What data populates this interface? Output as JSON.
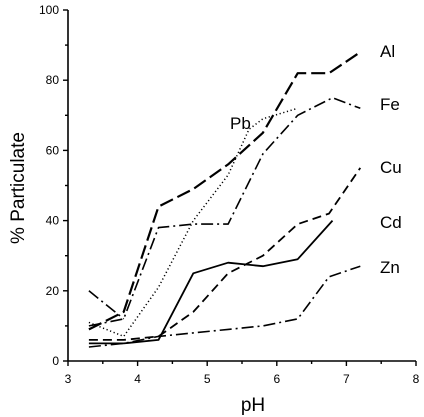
{
  "chart_data": {
    "type": "line",
    "title": "",
    "xlabel": "pH",
    "ylabel": "% Particulate",
    "xlim": [
      3,
      8
    ],
    "ylim": [
      0,
      100
    ],
    "x_ticks": [
      "3",
      "4",
      "5",
      "6",
      "7",
      "8"
    ],
    "y_ticks": [
      "0",
      "20",
      "40",
      "60",
      "80",
      "100"
    ],
    "grid": false,
    "series": [
      {
        "name": "Al",
        "style": "long-dash",
        "x": [
          3.3,
          3.8,
          4.3,
          4.8,
          5.3,
          5.8,
          6.3,
          6.75,
          7.2
        ],
        "y": [
          9,
          14,
          44,
          49,
          56,
          65,
          82,
          82,
          88
        ]
      },
      {
        "name": "Fe",
        "style": "dash-dot",
        "x": [
          3.3,
          3.8,
          4.3,
          4.8,
          5.3,
          5.8,
          6.3,
          6.8,
          7.2
        ],
        "y": [
          10,
          12,
          38,
          39,
          39,
          59,
          70,
          75,
          72
        ]
      },
      {
        "name": "Pb",
        "style": "dotted",
        "x": [
          3.3,
          3.8,
          4.3,
          4.8,
          5.3,
          5.6,
          5.8,
          6.3
        ],
        "y": [
          11,
          7,
          21,
          40,
          53,
          66,
          69,
          72
        ]
      },
      {
        "name": "Cu",
        "style": "dashed",
        "x": [
          3.3,
          3.8,
          4.3,
          4.8,
          5.3,
          5.8,
          6.3,
          6.75,
          7.2
        ],
        "y": [
          6,
          6,
          7,
          14,
          25,
          30,
          39,
          42,
          55
        ]
      },
      {
        "name": "Cd",
        "style": "solid",
        "x": [
          3.3,
          3.8,
          4.3,
          4.8,
          5.3,
          5.8,
          6.3,
          6.8
        ],
        "y": [
          5,
          5,
          6,
          25,
          28,
          27,
          29,
          40
        ]
      },
      {
        "name": "Zn",
        "style": "dash-dot",
        "x": [
          3.3,
          3.8,
          4.3,
          4.8,
          5.3,
          5.8,
          6.3,
          6.75,
          7.2
        ],
        "y": [
          4,
          5,
          7,
          8,
          9,
          10,
          12,
          24,
          27
        ]
      },
      {
        "name": "",
        "style": "dash-dot",
        "x": [
          3.3,
          3.8
        ],
        "y": [
          20,
          12
        ]
      }
    ]
  }
}
